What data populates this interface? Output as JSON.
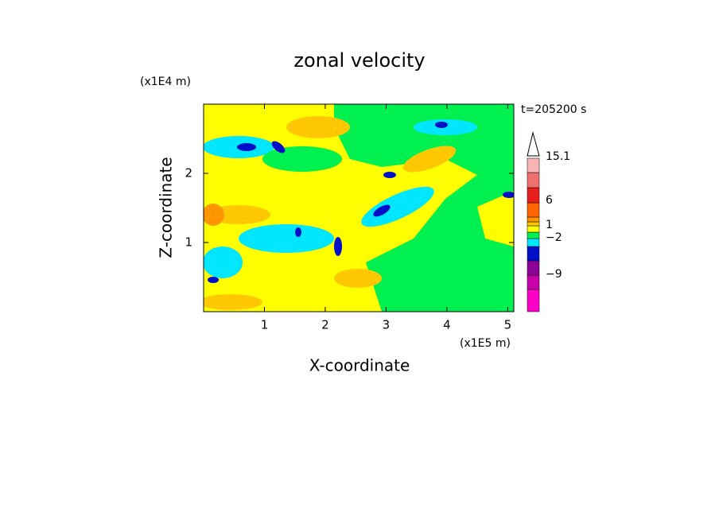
{
  "chart_data": {
    "type": "contour",
    "title": "zonal velocity",
    "x_label": "X-coordinate",
    "y_label": "Z-coordinate",
    "x_unit": "(x1E5 m)",
    "y_unit": "(x1E4 m)",
    "annotation": "t=205200 s",
    "xlim": [
      0,
      5.1
    ],
    "xticks": [
      1,
      2,
      3,
      4,
      5
    ],
    "ylim": [
      0,
      3
    ],
    "yticks": [
      1,
      2
    ],
    "colorbar": {
      "colors": [
        "#ff00c8",
        "#c800a8",
        "#8c0096",
        "#0010c8",
        "#00e6ff",
        "#00f050",
        "#ffff00",
        "#ffc800",
        "#ff9600",
        "#ff6400",
        "#e61e1e",
        "#f07070",
        "#f8b4b4"
      ],
      "labels": [
        "15.1",
        "6",
        "1",
        "−2",
        "−9"
      ]
    }
  }
}
